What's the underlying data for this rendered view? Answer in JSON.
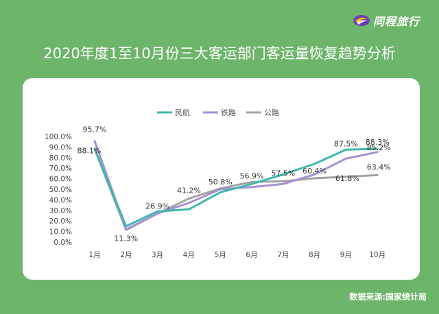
{
  "brand": {
    "name": "同程旅行",
    "logo_icon": "tongcheng-logo-icon"
  },
  "title": "2020年度1至10月份三大客运部门客运量恢复趋势分析",
  "source": "数据来源:国家统计局",
  "chart_data": {
    "type": "line",
    "title": "2020年度1至10月份三大客运部门客运量恢复趋势分析",
    "xlabel": "",
    "ylabel": "",
    "categories": [
      "1月",
      "2月",
      "3月",
      "4月",
      "5月",
      "6月",
      "7月",
      "8月",
      "9月",
      "10月"
    ],
    "yticks": [
      "0.0%",
      "10.0%",
      "20.0%",
      "30.0%",
      "40.0%",
      "50.0%",
      "60.0%",
      "70.0%",
      "80.0%",
      "90.0%",
      "100.0%"
    ],
    "ylim": [
      0,
      100
    ],
    "grid": false,
    "legend_position": "top",
    "series": [
      {
        "name": "民航",
        "color": "#3fb8ac",
        "values": [
          88.1,
          15.0,
          29.0,
          31.0,
          47.0,
          55.0,
          64.0,
          74.0,
          87.5,
          88.3
        ]
      },
      {
        "name": "铁路",
        "color": "#a68fd6",
        "values": [
          95.7,
          12.0,
          27.0,
          37.0,
          50.0,
          52.0,
          55.0,
          64.0,
          79.0,
          85.2
        ]
      },
      {
        "name": "公路",
        "color": "#a3a3a3",
        "values": [
          88.1,
          11.3,
          26.9,
          41.2,
          50.8,
          56.9,
          57.5,
          60.4,
          61.8,
          63.4
        ]
      }
    ],
    "data_labels": [
      {
        "text": "95.7%",
        "index": 0,
        "value": 95.7
      },
      {
        "text": "88.1%",
        "index": 0,
        "value": 88.1
      },
      {
        "text": "11.3%",
        "index": 1,
        "value": 11.3
      },
      {
        "text": "26.9%",
        "index": 2,
        "value": 26.9
      },
      {
        "text": "41.2%",
        "index": 3,
        "value": 41.2
      },
      {
        "text": "50.8%",
        "index": 4,
        "value": 50.8
      },
      {
        "text": "56.9%",
        "index": 5,
        "value": 56.9
      },
      {
        "text": "57.5%",
        "index": 6,
        "value": 57.5
      },
      {
        "text": "60.4%",
        "index": 7,
        "value": 60.4
      },
      {
        "text": "61.8%",
        "index": 8,
        "value": 61.8
      },
      {
        "text": "63.4%",
        "index": 9,
        "value": 63.4
      },
      {
        "text": "87.5%",
        "index": 8,
        "value": 87.5
      },
      {
        "text": "88.3%",
        "index": 9,
        "value": 88.3
      },
      {
        "text": "85.2%",
        "index": 9,
        "value": 85.2
      }
    ]
  }
}
